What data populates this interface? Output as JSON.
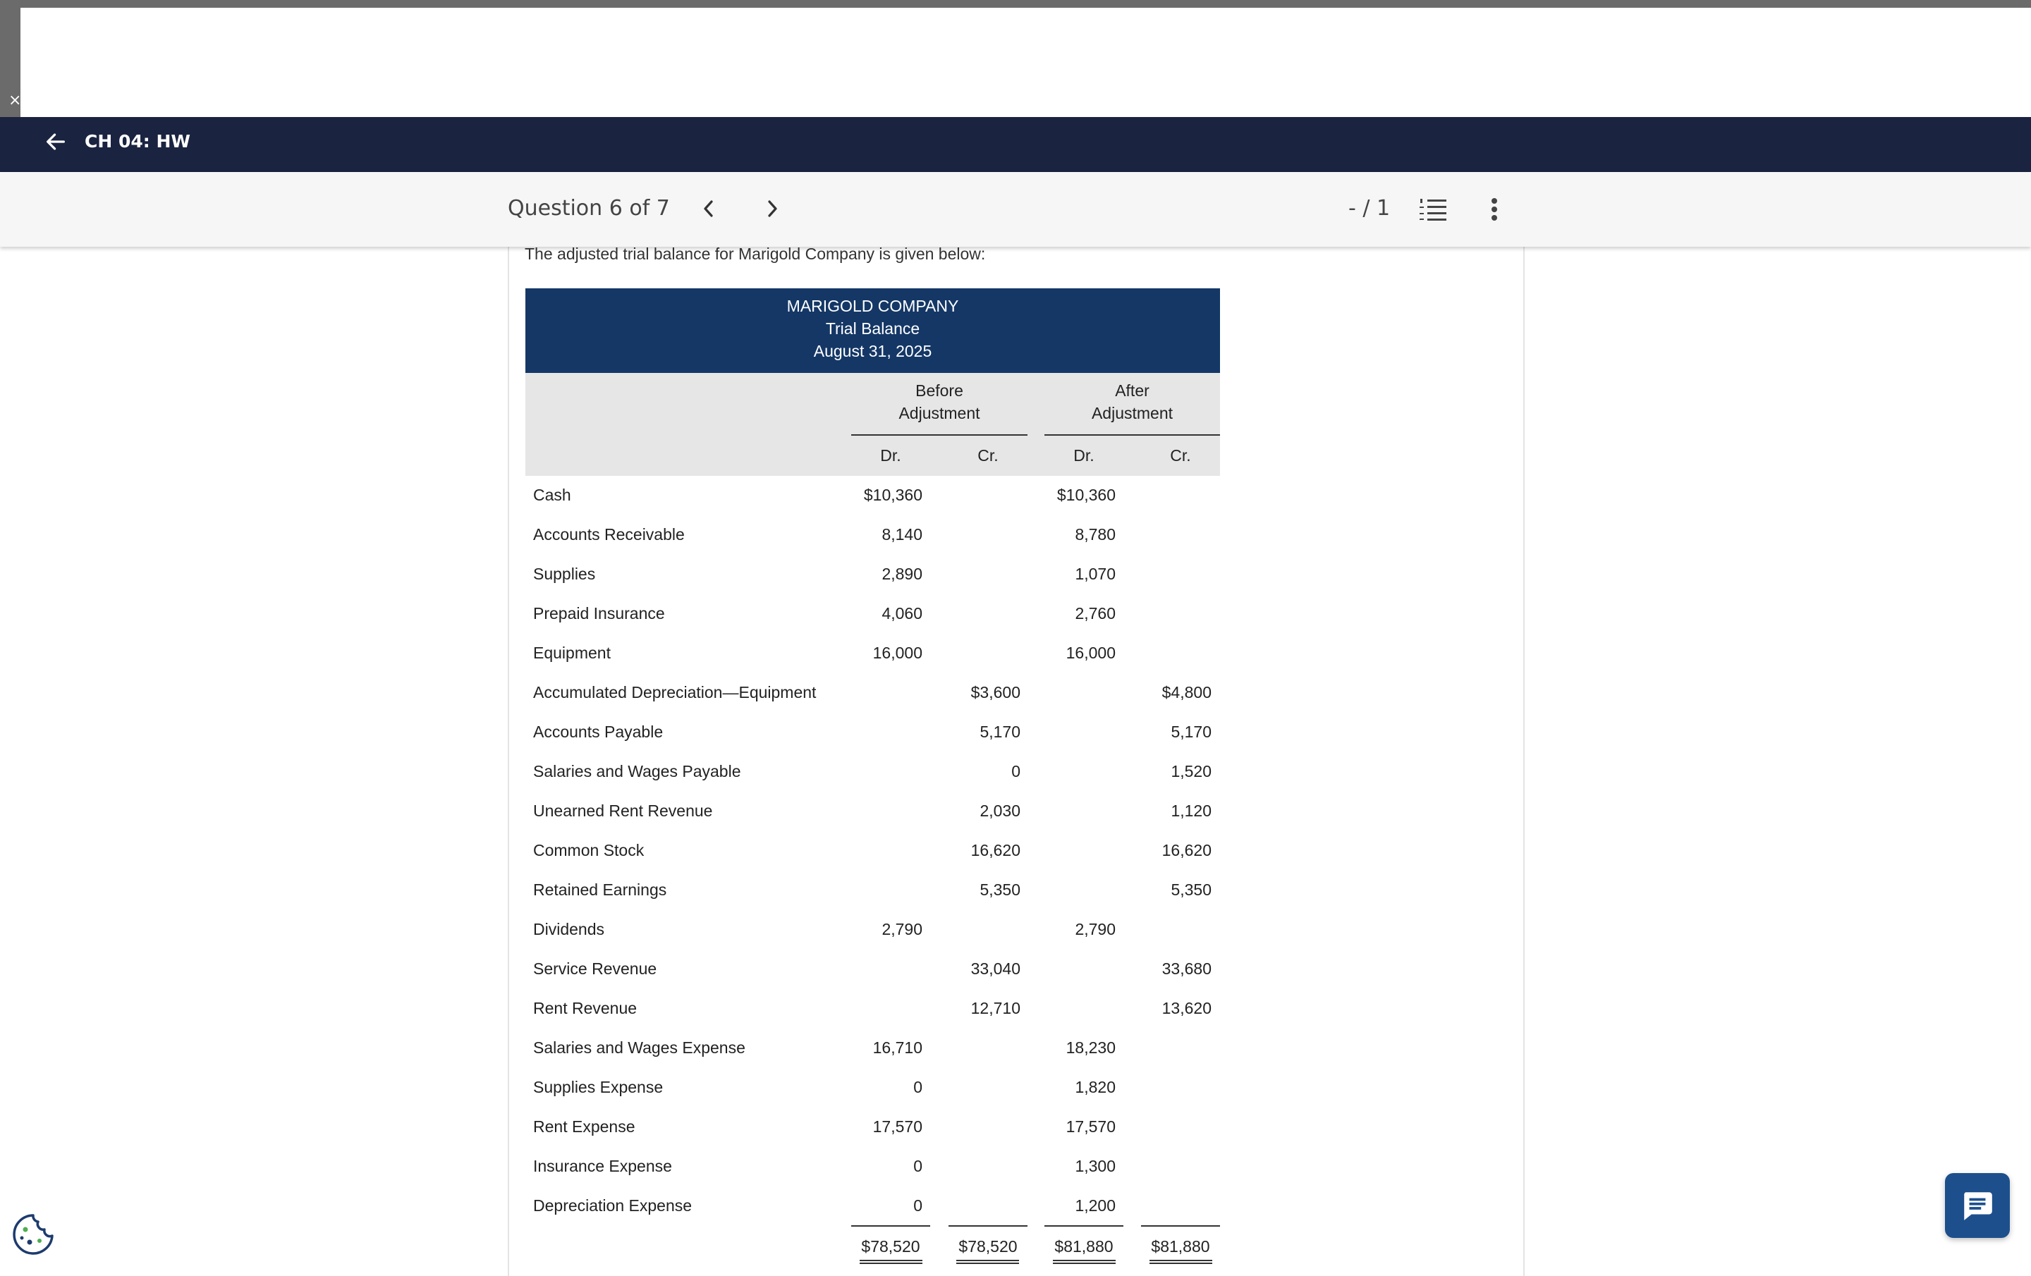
{
  "window": {
    "close_glyph": "×"
  },
  "navbar": {
    "title": "CH 04: HW",
    "back_icon": "arrow-left-icon"
  },
  "question_bar": {
    "label": "Question 6 of 7",
    "prev_icon": "chevron-left-icon",
    "next_icon": "chevron-right-icon",
    "score": "- / 1",
    "list_icon": "numbered-list-icon",
    "more_icon": "more-vertical-icon"
  },
  "content": {
    "intro": "The adjusted trial balance for Marigold Company is given below:"
  },
  "trial_balance": {
    "company": "MARIGOLD COMPANY",
    "title": "Trial Balance",
    "date": "August 31, 2025",
    "before_group_line1": "Before",
    "before_group_line2": "Adjustment",
    "after_group_line1": "After",
    "after_group_line2": "Adjustment",
    "dr_label": "Dr.",
    "cr_label": "Cr.",
    "rows": [
      {
        "account": "Cash",
        "before_dr": "$10,360",
        "before_cr": "",
        "after_dr": "$10,360",
        "after_cr": ""
      },
      {
        "account": "Accounts Receivable",
        "before_dr": "8,140",
        "before_cr": "",
        "after_dr": "8,780",
        "after_cr": ""
      },
      {
        "account": "Supplies",
        "before_dr": "2,890",
        "before_cr": "",
        "after_dr": "1,070",
        "after_cr": ""
      },
      {
        "account": "Prepaid Insurance",
        "before_dr": "4,060",
        "before_cr": "",
        "after_dr": "2,760",
        "after_cr": ""
      },
      {
        "account": "Equipment",
        "before_dr": "16,000",
        "before_cr": "",
        "after_dr": "16,000",
        "after_cr": ""
      },
      {
        "account": "Accumulated Depreciation—Equipment",
        "before_dr": "",
        "before_cr": "$3,600",
        "after_dr": "",
        "after_cr": "$4,800"
      },
      {
        "account": "Accounts Payable",
        "before_dr": "",
        "before_cr": "5,170",
        "after_dr": "",
        "after_cr": "5,170"
      },
      {
        "account": "Salaries and Wages Payable",
        "before_dr": "",
        "before_cr": "0",
        "after_dr": "",
        "after_cr": "1,520"
      },
      {
        "account": "Unearned Rent Revenue",
        "before_dr": "",
        "before_cr": "2,030",
        "after_dr": "",
        "after_cr": "1,120"
      },
      {
        "account": "Common Stock",
        "before_dr": "",
        "before_cr": "16,620",
        "after_dr": "",
        "after_cr": "16,620"
      },
      {
        "account": "Retained Earnings",
        "before_dr": "",
        "before_cr": "5,350",
        "after_dr": "",
        "after_cr": "5,350"
      },
      {
        "account": "Dividends",
        "before_dr": "2,790",
        "before_cr": "",
        "after_dr": "2,790",
        "after_cr": ""
      },
      {
        "account": "Service Revenue",
        "before_dr": "",
        "before_cr": "33,040",
        "after_dr": "",
        "after_cr": "33,680"
      },
      {
        "account": "Rent Revenue",
        "before_dr": "",
        "before_cr": "12,710",
        "after_dr": "",
        "after_cr": "13,620"
      },
      {
        "account": "Salaries and Wages Expense",
        "before_dr": "16,710",
        "before_cr": "",
        "after_dr": "18,230",
        "after_cr": ""
      },
      {
        "account": "Supplies Expense",
        "before_dr": "0",
        "before_cr": "",
        "after_dr": "1,820",
        "after_cr": ""
      },
      {
        "account": "Rent Expense",
        "before_dr": "17,570",
        "before_cr": "",
        "after_dr": "17,570",
        "after_cr": ""
      },
      {
        "account": "Insurance Expense",
        "before_dr": "0",
        "before_cr": "",
        "after_dr": "1,300",
        "after_cr": ""
      },
      {
        "account": "Depreciation Expense",
        "before_dr": "0",
        "before_cr": "",
        "after_dr": "1,200",
        "after_cr": ""
      }
    ],
    "totals": {
      "before_dr": "$78,520",
      "before_cr": "$78,520",
      "after_dr": "$81,880",
      "after_cr": "$81,880"
    }
  },
  "widgets": {
    "cookie_icon": "cookie-icon",
    "chat_icon": "chat-bubble-icon"
  },
  "colors": {
    "navbar": "#1a2340",
    "table_header": "#143766",
    "column_header": "#e6e6e6",
    "chat_button": "#1d4f8c"
  }
}
